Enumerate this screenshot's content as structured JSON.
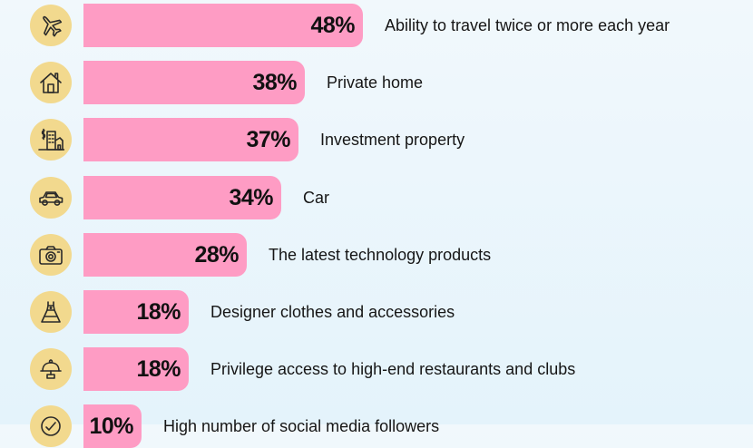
{
  "chart_data": {
    "type": "bar",
    "orientation": "horizontal",
    "categories": [
      "Ability to travel twice or more each year",
      "Private home",
      "Investment property",
      "Car",
      "The latest technology products",
      "Designer clothes and accessories",
      "Privilege access to high-end restaurants and clubs",
      "High number of social media followers"
    ],
    "values": [
      48,
      38,
      37,
      34,
      28,
      18,
      18,
      10
    ],
    "value_labels": [
      "48%",
      "38%",
      "37%",
      "34%",
      "28%",
      "18%",
      "18%",
      "10%"
    ],
    "icons": [
      "airplane-icon",
      "house-icon",
      "investment-property-icon",
      "car-icon",
      "camera-icon",
      "dress-icon",
      "cloche-icon",
      "social-media-icon"
    ],
    "xlim": [
      0,
      48
    ],
    "grid": false,
    "legend": "none"
  },
  "colors": {
    "bar": "#fe9cc4",
    "icon_circle": "#f2d98e",
    "icon_stroke": "#2a2a2a",
    "text": "#161616"
  }
}
